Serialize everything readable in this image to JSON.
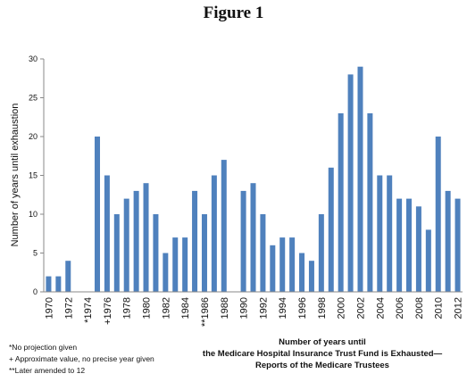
{
  "figure_title": "Figure 1",
  "chart_data": {
    "type": "bar",
    "ylabel": "Number of years until exhaustion",
    "ylim": [
      0,
      30
    ],
    "yticks": [
      0,
      5,
      10,
      15,
      20,
      25,
      30
    ],
    "grid": false,
    "bar_color": "#4f81bd",
    "x": [
      1970,
      1971,
      1972,
      1973,
      1974,
      1975,
      1976,
      1977,
      1978,
      1979,
      1980,
      1981,
      1982,
      1983,
      1984,
      1985,
      1986,
      1987,
      1988,
      1989,
      1990,
      1991,
      1992,
      1993,
      1994,
      1995,
      1996,
      1997,
      1998,
      1999,
      2000,
      2001,
      2002,
      2003,
      2004,
      2005,
      2006,
      2007,
      2008,
      2009,
      2010,
      2011,
      2012
    ],
    "values": [
      2,
      2,
      4,
      null,
      null,
      20,
      15,
      10,
      12,
      13,
      14,
      10,
      5,
      7,
      7,
      13,
      10,
      15,
      17,
      null,
      13,
      14,
      10,
      6,
      7,
      7,
      5,
      4,
      10,
      16,
      23,
      28,
      29,
      23,
      15,
      15,
      12,
      12,
      11,
      8,
      20,
      13,
      12
    ],
    "tick_labels": [
      "1970",
      "1972",
      "*1974",
      "+1976",
      "1978",
      "1980",
      "1982",
      "1984",
      "**1986",
      "1988",
      "1990",
      "1992",
      "1994",
      "1996",
      "1998",
      "2000",
      "2002",
      "2004",
      "2006",
      "2008",
      "2010",
      "2012"
    ],
    "tick_years": [
      1970,
      1972,
      1974,
      1976,
      1978,
      1980,
      1982,
      1984,
      1986,
      1988,
      1990,
      1992,
      1994,
      1996,
      1998,
      2000,
      2002,
      2004,
      2006,
      2008,
      2010,
      2012
    ]
  },
  "footnotes": [
    "*No projection given",
    "+ Approximate value, no precise year given",
    "**Later amended to 12"
  ],
  "caption": {
    "line1": "Number of years until",
    "line2": "the Medicare Hospital Insurance Trust Fund is Exhausted—",
    "line3": "Reports of the Medicare Trustees"
  }
}
